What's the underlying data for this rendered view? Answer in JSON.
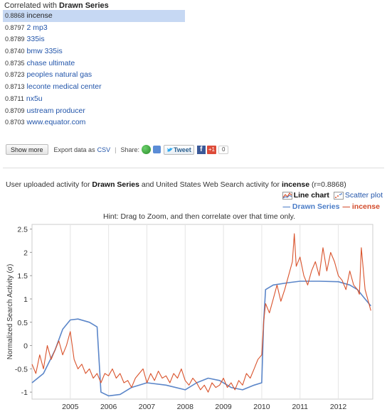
{
  "header": {
    "prefix": "Correlated with",
    "series": "Drawn Series"
  },
  "correlations": [
    {
      "score": "0.8868",
      "term": "incense",
      "selected": true
    },
    {
      "score": "0.8797",
      "term": "2 mp3"
    },
    {
      "score": "0.8789",
      "term": "335is"
    },
    {
      "score": "0.8740",
      "term": "bmw 335is"
    },
    {
      "score": "0.8735",
      "term": "chase ultimate"
    },
    {
      "score": "0.8723",
      "term": "peoples natural gas"
    },
    {
      "score": "0.8713",
      "term": "leconte medical center"
    },
    {
      "score": "0.8711",
      "term": "nx5u"
    },
    {
      "score": "0.8709",
      "term": "ustream producer"
    },
    {
      "score": "0.8703",
      "term": "www.equator.com"
    }
  ],
  "actions": {
    "show_more": "Show more",
    "export_label": "Export data as",
    "export_link": "CSV",
    "share_label": "Share:",
    "tweet": "Tweet",
    "fb": "f",
    "gplus": "+1",
    "count": "0"
  },
  "summary": {
    "p1": "User uploaded activity for ",
    "s1": "Drawn Series",
    "p2": " and United States Web Search activity for ",
    "s2": "incense",
    "p3": " (r=0.8868)"
  },
  "chart_switch": {
    "line": "Line chart",
    "scatter": "Scatter plot"
  },
  "legend": {
    "drawn": "— Drawn Series",
    "incense": "— incense"
  },
  "hint": "Hint: Drag to Zoom, and then correlate over that time only.",
  "colors": {
    "drawn": "#5b86c9",
    "incense": "#d9532c",
    "selected_bg": "#c6d8f3",
    "link": "#2255aa"
  },
  "chart_data": {
    "type": "line",
    "ylabel": "Normalized Search Activity (σ)",
    "xlim": [
      2004.0,
      2012.9
    ],
    "ylim": [
      -1.15,
      2.6
    ],
    "x_ticks": [
      2005,
      2006,
      2007,
      2008,
      2009,
      2010,
      2011,
      2012
    ],
    "y_ticks": [
      -1,
      -0.5,
      0,
      0.5,
      1,
      1.5,
      2,
      2.5
    ],
    "y_tick_labels": [
      "-1",
      "-0.5",
      "0",
      "0.5",
      "1",
      "1.5",
      "2",
      "2.5"
    ],
    "series": [
      {
        "name": "Drawn Series",
        "x": [
          2004.0,
          2004.3,
          2004.6,
          2004.8,
          2005.0,
          2005.2,
          2005.5,
          2005.7,
          2005.75,
          2005.8,
          2006.0,
          2006.3,
          2006.6,
          2007.0,
          2007.5,
          2008.0,
          2008.3,
          2008.6,
          2008.9,
          2009.2,
          2009.5,
          2009.8,
          2010.0,
          2010.05,
          2010.1,
          2010.3,
          2010.7,
          2011.0,
          2011.5,
          2012.0,
          2012.3,
          2012.5,
          2012.7,
          2012.85
        ],
        "y": [
          -0.8,
          -0.6,
          -0.1,
          0.35,
          0.55,
          0.57,
          0.5,
          0.4,
          -0.3,
          -1.0,
          -1.08,
          -1.05,
          -0.9,
          -0.8,
          -0.85,
          -0.95,
          -0.8,
          -0.7,
          -0.75,
          -0.9,
          -0.95,
          -0.85,
          -0.8,
          0.5,
          1.2,
          1.3,
          1.35,
          1.38,
          1.38,
          1.37,
          1.3,
          1.2,
          1.0,
          0.85
        ]
      },
      {
        "name": "incense",
        "x": [
          2004.0,
          2004.1,
          2004.2,
          2004.3,
          2004.4,
          2004.5,
          2004.6,
          2004.7,
          2004.8,
          2004.9,
          2005.0,
          2005.1,
          2005.2,
          2005.3,
          2005.4,
          2005.5,
          2005.6,
          2005.7,
          2005.8,
          2005.9,
          2006.0,
          2006.1,
          2006.2,
          2006.3,
          2006.4,
          2006.5,
          2006.6,
          2006.7,
          2006.8,
          2006.9,
          2007.0,
          2007.1,
          2007.2,
          2007.3,
          2007.4,
          2007.5,
          2007.6,
          2007.7,
          2007.8,
          2007.9,
          2008.0,
          2008.1,
          2008.2,
          2008.3,
          2008.4,
          2008.5,
          2008.6,
          2008.7,
          2008.8,
          2008.9,
          2009.0,
          2009.1,
          2009.2,
          2009.3,
          2009.4,
          2009.5,
          2009.6,
          2009.7,
          2009.8,
          2009.9,
          2010.0,
          2010.05,
          2010.1,
          2010.2,
          2010.3,
          2010.4,
          2010.5,
          2010.6,
          2010.7,
          2010.8,
          2010.85,
          2010.9,
          2011.0,
          2011.1,
          2011.2,
          2011.3,
          2011.4,
          2011.5,
          2011.6,
          2011.7,
          2011.8,
          2011.9,
          2012.0,
          2012.1,
          2012.2,
          2012.3,
          2012.4,
          2012.5,
          2012.55,
          2012.6,
          2012.7,
          2012.8,
          2012.85
        ],
        "y": [
          -0.4,
          -0.6,
          -0.2,
          -0.5,
          0.0,
          -0.3,
          -0.1,
          0.1,
          -0.2,
          0.0,
          0.3,
          -0.3,
          -0.5,
          -0.4,
          -0.6,
          -0.5,
          -0.7,
          -0.6,
          -0.8,
          -0.6,
          -0.65,
          -0.5,
          -0.7,
          -0.6,
          -0.8,
          -0.75,
          -0.9,
          -0.7,
          -0.6,
          -0.5,
          -0.8,
          -0.6,
          -0.75,
          -0.55,
          -0.7,
          -0.65,
          -0.8,
          -0.6,
          -0.7,
          -0.5,
          -0.75,
          -0.85,
          -0.7,
          -0.8,
          -0.95,
          -0.85,
          -1.0,
          -0.8,
          -0.9,
          -0.85,
          -0.7,
          -0.9,
          -0.8,
          -0.95,
          -0.75,
          -0.85,
          -0.6,
          -0.7,
          -0.5,
          -0.3,
          -0.2,
          0.5,
          0.9,
          0.7,
          1.0,
          1.3,
          0.95,
          1.2,
          1.5,
          1.8,
          2.4,
          1.7,
          1.9,
          1.5,
          1.3,
          1.6,
          1.8,
          1.5,
          2.1,
          1.6,
          2.0,
          1.8,
          1.5,
          1.4,
          1.2,
          1.6,
          1.3,
          1.2,
          1.1,
          2.1,
          1.2,
          0.9,
          0.75
        ]
      }
    ]
  }
}
